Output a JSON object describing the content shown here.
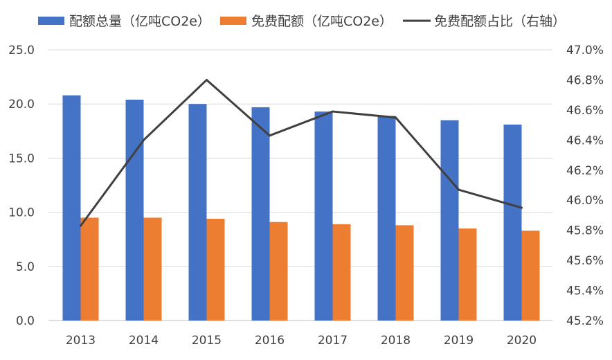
{
  "chart_data": {
    "type": "bar",
    "categories": [
      "2013",
      "2014",
      "2015",
      "2016",
      "2017",
      "2018",
      "2019",
      "2020"
    ],
    "series": [
      {
        "name": "配额总量（亿吨CO2e）",
        "type": "bar",
        "axis": "left",
        "color": "#4472C4",
        "values": [
          20.8,
          20.4,
          20.0,
          19.7,
          19.3,
          18.9,
          18.5,
          18.1
        ]
      },
      {
        "name": "免费配额（亿吨CO2e）",
        "type": "bar",
        "axis": "left",
        "color": "#ED7D31",
        "values": [
          9.5,
          9.5,
          9.4,
          9.1,
          8.9,
          8.8,
          8.5,
          8.3
        ]
      },
      {
        "name": "免费配额占比（右轴）",
        "type": "line",
        "axis": "right",
        "color": "#404040",
        "values": [
          45.83,
          46.4,
          46.8,
          46.43,
          46.59,
          46.55,
          46.07,
          45.95
        ]
      }
    ],
    "y_left": {
      "min": 0,
      "max": 25,
      "step": 5,
      "tick_labels": [
        "0.0",
        "5.0",
        "10.0",
        "15.0",
        "20.0",
        "25.0"
      ]
    },
    "y_right": {
      "min": 45.2,
      "max": 47.0,
      "step": 0.2,
      "tick_labels": [
        "45.2%",
        "45.4%",
        "45.6%",
        "45.8%",
        "46.0%",
        "46.2%",
        "46.4%",
        "46.6%",
        "46.8%",
        "47.0%"
      ]
    },
    "legend": {
      "position": "top"
    },
    "grid": true,
    "grid_color": "#D9D9D9"
  }
}
